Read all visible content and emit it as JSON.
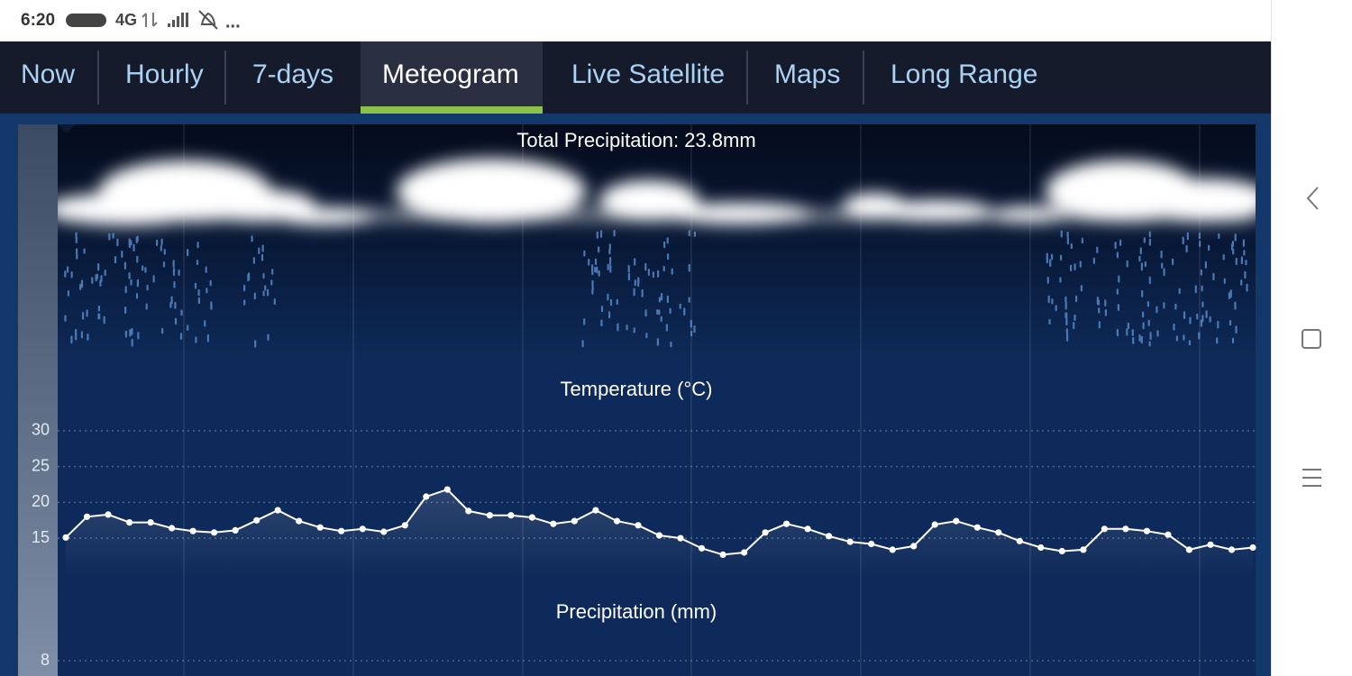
{
  "status_bar": {
    "time": "6:20",
    "network": "4G",
    "more": "..."
  },
  "tabs": {
    "items": [
      "Now",
      "Hourly",
      "7-days",
      "Meteogram",
      "Live Satellite",
      "Maps",
      "Long Range"
    ],
    "active": 3
  },
  "chart_data": [
    {
      "type": "line",
      "title": "Temperature (°C)",
      "values": [
        15.1,
        18,
        18.3,
        17.2,
        17.2,
        16.4,
        16,
        15.8,
        16.1,
        17.5,
        18.9,
        17.4,
        16.5,
        16,
        16.3,
        15.9,
        16.8,
        20.8,
        21.8,
        18.8,
        18.2,
        18.2,
        17.9,
        17,
        17.4,
        18.9,
        17.4,
        16.8,
        15.4,
        15,
        13.6,
        12.7,
        13,
        15.8,
        17,
        16.3,
        15.3,
        14.5,
        14.2,
        13.4,
        13.9,
        16.9,
        17.4,
        16.5,
        15.8,
        14.6,
        13.7,
        13.2,
        13.4,
        16.3,
        16.3,
        16,
        15.5,
        13.4,
        14.1,
        13.4,
        13.7
      ],
      "color": "#ffffff",
      "ylim": [
        12,
        33
      ],
      "yticks": [
        15,
        20,
        25,
        30
      ],
      "grid": true
    },
    {
      "type": "bar",
      "title": "Precipitation (mm)",
      "total": "Total Precipitation: 23.8mm",
      "ylim": [
        0,
        8
      ],
      "yticks": [
        8
      ],
      "grid": true
    }
  ]
}
